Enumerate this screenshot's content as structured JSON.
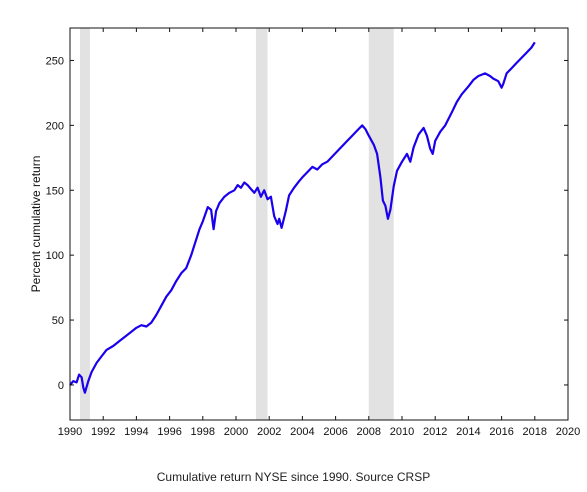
{
  "chart_data": {
    "type": "line",
    "title": "",
    "caption": "Cumulative return NYSE since 1990. Source CRSP",
    "xlabel": "",
    "ylabel": "Percent cumulative return",
    "xlim": [
      1990,
      2020
    ],
    "ylim": [
      -27,
      275
    ],
    "x_ticks": [
      1990,
      1992,
      1994,
      1996,
      1998,
      2000,
      2002,
      2004,
      2006,
      2008,
      2010,
      2012,
      2014,
      2016,
      2018,
      2020
    ],
    "y_ticks": [
      0,
      50,
      100,
      150,
      200,
      250
    ],
    "grid": false,
    "line_color": "#1a00ee",
    "shade_color": "#e2e2e2",
    "shaded_periods": [
      [
        1990.6,
        1991.2
      ],
      [
        2001.2,
        2001.9
      ],
      [
        2008.0,
        2009.5
      ]
    ],
    "series": [
      {
        "x": [
          1990.0,
          1990.2,
          1990.4,
          1990.55,
          1990.7,
          1990.8,
          1990.9,
          1991.1,
          1991.3,
          1991.6,
          1991.9,
          1992.2,
          1992.6,
          1993.0,
          1993.4,
          1993.8,
          1994.0,
          1994.3,
          1994.6,
          1994.9,
          1995.2,
          1995.5,
          1995.8,
          1996.1,
          1996.4,
          1996.7,
          1997.0,
          1997.3,
          1997.5,
          1997.8,
          1998.0,
          1998.3,
          1998.5,
          1998.65,
          1998.8,
          1999.0,
          1999.3,
          1999.6,
          1999.9,
          2000.1,
          2000.3,
          2000.5,
          2000.7,
          2000.9,
          2001.1,
          2001.3,
          2001.5,
          2001.7,
          2001.9,
          2002.1,
          2002.3,
          2002.5,
          2002.6,
          2002.75,
          2003.0,
          2003.2,
          2003.5,
          2003.8,
          2004.0,
          2004.3,
          2004.6,
          2004.9,
          2005.2,
          2005.5,
          2005.8,
          2006.1,
          2006.4,
          2006.7,
          2007.0,
          2007.3,
          2007.6,
          2007.8,
          2008.0,
          2008.3,
          2008.5,
          2008.7,
          2008.85,
          2009.0,
          2009.15,
          2009.3,
          2009.5,
          2009.7,
          2010.0,
          2010.3,
          2010.5,
          2010.7,
          2011.0,
          2011.3,
          2011.5,
          2011.7,
          2011.85,
          2012.0,
          2012.3,
          2012.6,
          2013.0,
          2013.3,
          2013.6,
          2014.0,
          2014.3,
          2014.6,
          2015.0,
          2015.3,
          2015.5,
          2015.8,
          2016.0,
          2016.1,
          2016.3,
          2016.6,
          2016.9,
          2017.2,
          2017.5,
          2017.8,
          2018.0
        ],
        "y": [
          0,
          3,
          2,
          8,
          6,
          -2,
          -6,
          3,
          10,
          17,
          22,
          27,
          30,
          34,
          38,
          42,
          44,
          46,
          45,
          48,
          54,
          61,
          68,
          73,
          80,
          86,
          90,
          100,
          108,
          120,
          126,
          137,
          135,
          120,
          134,
          140,
          145,
          148,
          150,
          154,
          152,
          156,
          154,
          151,
          148,
          152,
          145,
          150,
          143,
          145,
          130,
          124,
          128,
          121,
          134,
          146,
          152,
          157,
          160,
          164,
          168,
          166,
          170,
          172,
          176,
          180,
          184,
          188,
          192,
          196,
          200,
          197,
          192,
          185,
          178,
          160,
          142,
          138,
          128,
          135,
          153,
          165,
          172,
          178,
          172,
          183,
          193,
          198,
          192,
          182,
          178,
          188,
          195,
          200,
          210,
          218,
          224,
          230,
          235,
          238,
          240,
          238,
          236,
          234,
          229,
          232,
          240,
          244,
          248,
          252,
          256,
          260,
          264
        ]
      }
    ]
  }
}
